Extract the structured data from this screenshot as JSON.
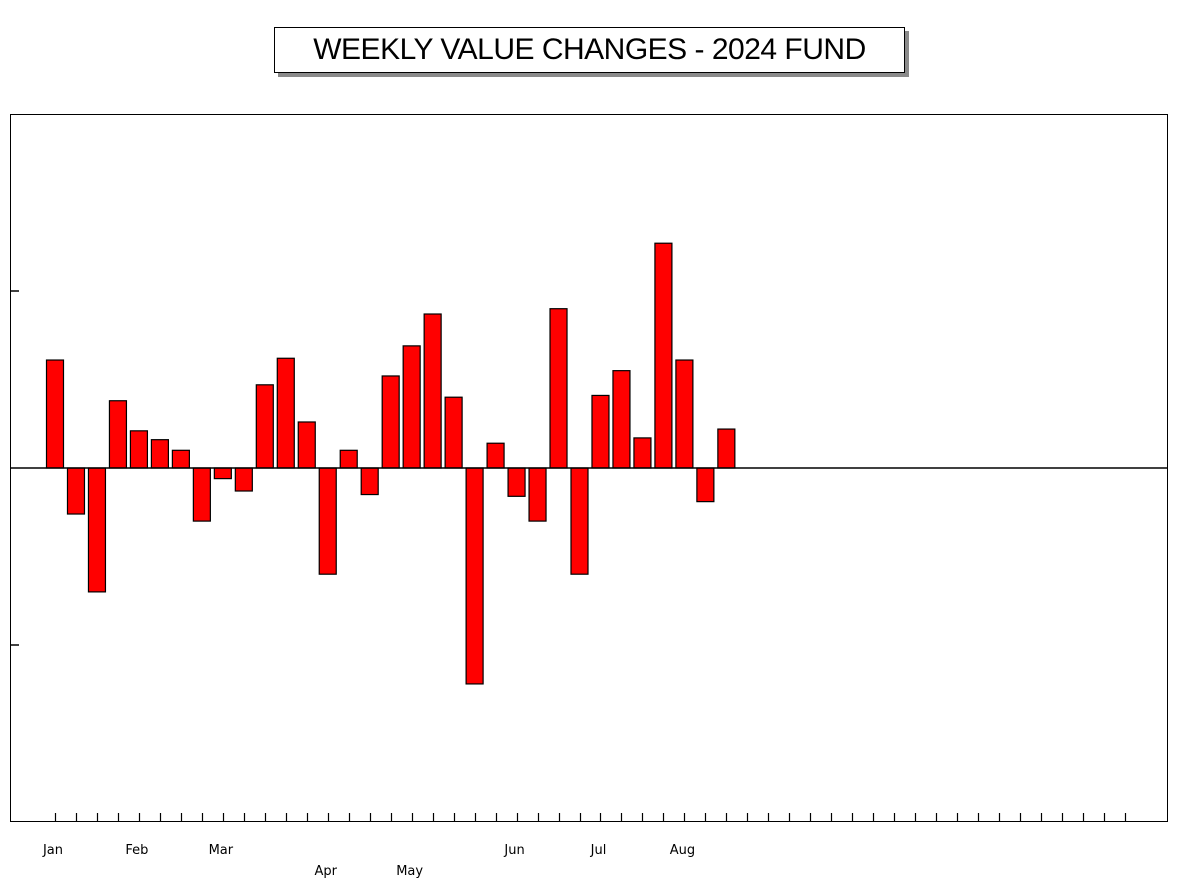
{
  "chart_data": {
    "type": "bar",
    "title": "WEEKLY VALUE CHANGES - 2024 FUND",
    "xlabel": "",
    "ylabel": "",
    "ylim": [
      -2,
      2
    ],
    "yticks": [
      -1,
      1
    ],
    "ytick_labels_shown": false,
    "grid": false,
    "total_weeks": 52,
    "bar_color": "#ff0000",
    "bar_edge_color": "#000000",
    "weeks": [
      1,
      2,
      3,
      4,
      5,
      6,
      7,
      8,
      9,
      10,
      11,
      12,
      13,
      14,
      15,
      16,
      17,
      18,
      19,
      20,
      21,
      22,
      23,
      24,
      25,
      26,
      27,
      28,
      29,
      30,
      31,
      32,
      33
    ],
    "values": [
      0.61,
      -0.26,
      -0.7,
      0.38,
      0.21,
      0.16,
      0.1,
      -0.3,
      -0.06,
      -0.13,
      0.47,
      0.62,
      0.26,
      -0.6,
      0.1,
      -0.15,
      0.52,
      0.69,
      0.87,
      0.4,
      -1.22,
      0.14,
      -0.16,
      -0.3,
      0.9,
      -0.6,
      0.41,
      0.55,
      0.17,
      1.27,
      0.61,
      -0.19,
      0.22
    ],
    "month_labels": [
      {
        "label": "Jan",
        "week": 1,
        "row": 1
      },
      {
        "label": "Feb",
        "week": 5,
        "row": 1
      },
      {
        "label": "Mar",
        "week": 9,
        "row": 1
      },
      {
        "label": "Apr",
        "week": 14,
        "row": 2
      },
      {
        "label": "May",
        "week": 18,
        "row": 2
      },
      {
        "label": "Jun",
        "week": 23,
        "row": 1
      },
      {
        "label": "Jul",
        "week": 27,
        "row": 1
      },
      {
        "label": "Aug",
        "week": 31,
        "row": 1
      }
    ]
  }
}
